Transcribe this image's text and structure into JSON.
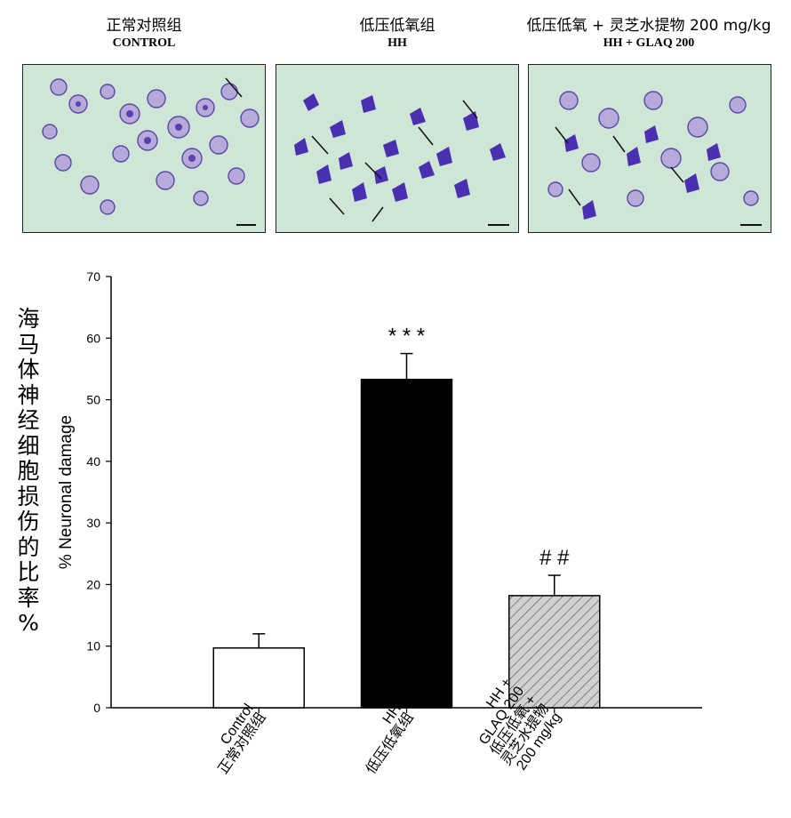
{
  "panels": [
    {
      "title_zh": "正常对照组",
      "title_en": "CONTROL"
    },
    {
      "title_zh": "低压低氧组",
      "title_en": "HH"
    },
    {
      "title_zh": "低压低氧 + 灵芝水提物 200 mg/kg",
      "title_en": "HH + GLAQ 200"
    }
  ],
  "side_label": "海马体神经细胞损伤的比率 %",
  "chart_data": {
    "type": "bar",
    "ylabel": "% Neuronal damage",
    "ylim": [
      0,
      70
    ],
    "yticks": [
      0,
      10,
      20,
      30,
      40,
      50,
      60,
      70
    ],
    "categories": [
      [
        "Control",
        "正常对照组"
      ],
      [
        "HH",
        "低压低氧组"
      ],
      [
        "HH +",
        "GLAQ 200",
        "低压低氧 +",
        "灵芝水提物",
        "200 mg/kg"
      ]
    ],
    "values": [
      9.7,
      53.3,
      18.2
    ],
    "errors": [
      2.3,
      4.2,
      3.3
    ],
    "fills": [
      "white",
      "black",
      "hatched-gray"
    ],
    "annotations": [
      "",
      "* * *",
      "# #"
    ],
    "colors": {
      "fill_white": "#ffffff",
      "fill_black": "#000000",
      "fill_hatch_bg": "#d0d0d0",
      "hatch_line": "#555555"
    }
  }
}
